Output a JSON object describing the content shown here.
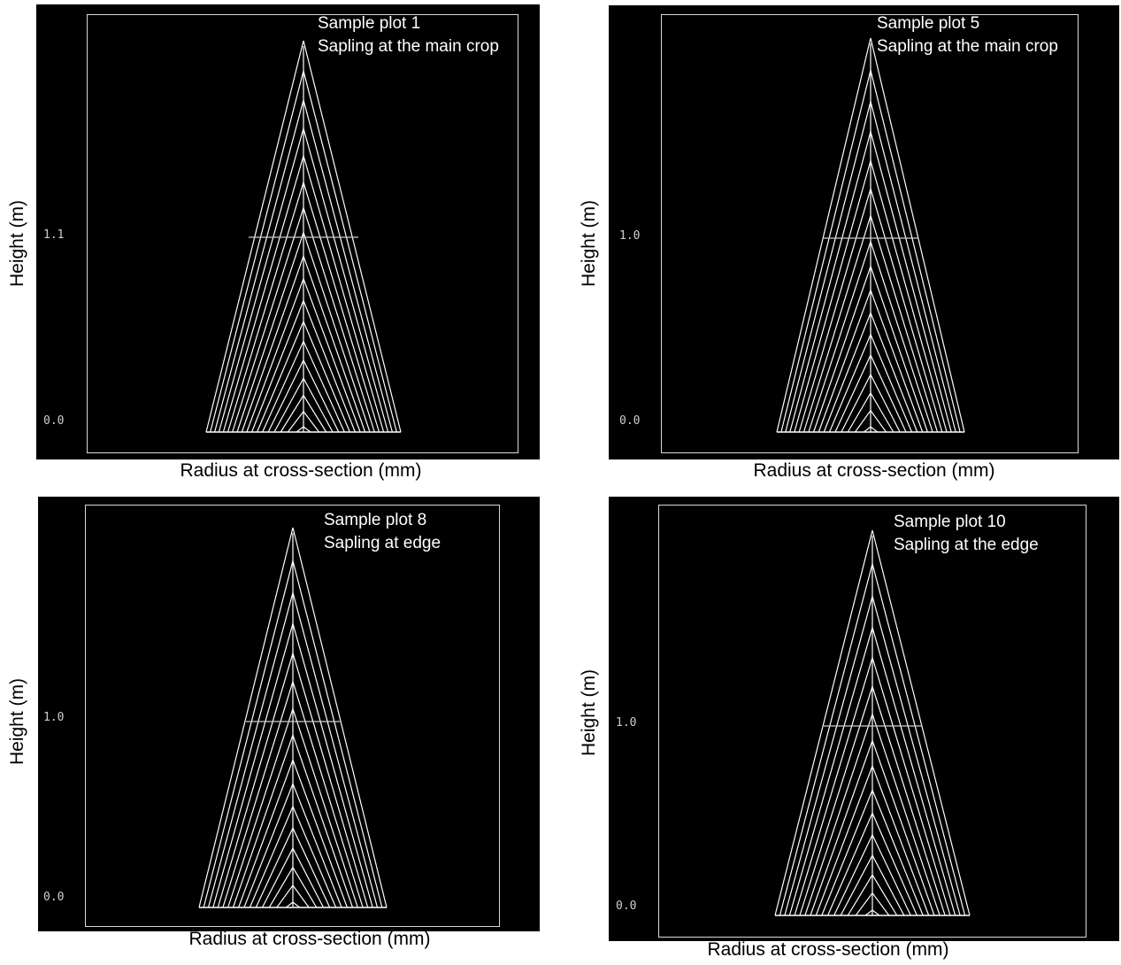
{
  "chart_data": [
    {
      "type": "line",
      "subtitle": [
        "Sample plot 1",
        "Sapling at the main crop"
      ],
      "xlabel": "Radius at cross-section (mm)",
      "ylabel": "Height (m)",
      "yticks": [
        "1.1",
        "0.0"
      ],
      "ytick_values": [
        1.1,
        0.0
      ],
      "ylim": [
        0.0,
        2.27
      ],
      "rings": 18,
      "grid": false
    },
    {
      "type": "line",
      "subtitle": [
        "Sample plot 5",
        "Sapling at the main crop"
      ],
      "xlabel": "Radius at cross-section (mm)",
      "ylabel": "Height (m)",
      "yticks": [
        "1.0",
        "0.0"
      ],
      "ytick_values": [
        1.0,
        0.0
      ],
      "ylim": [
        0.0,
        2.07
      ],
      "rings": 17,
      "grid": false
    },
    {
      "type": "line",
      "subtitle": [
        "Sample plot 8",
        "Sapling at edge"
      ],
      "xlabel": "Radius at cross-section (mm)",
      "ylabel": "Height (m)",
      "yticks": [
        "1.0",
        "0.0"
      ],
      "ytick_values": [
        1.0,
        0.0
      ],
      "ylim": [
        0.0,
        2.06
      ],
      "rings": 16,
      "grid": false
    },
    {
      "type": "line",
      "subtitle": [
        "Sample plot 10",
        "Sapling at the edge"
      ],
      "xlabel": "Radius at cross-section (mm)",
      "ylabel": "Height (m)",
      "yticks": [
        "1.0",
        "0.0"
      ],
      "ytick_values": [
        1.0,
        0.0
      ],
      "ylim": [
        0.0,
        2.08
      ],
      "rings": 16,
      "grid": false
    }
  ],
  "colors": {
    "background": "#000000",
    "lines": "#ffffff",
    "frame": "#d9d9d9",
    "tick_text": "#cfcfcf"
  }
}
